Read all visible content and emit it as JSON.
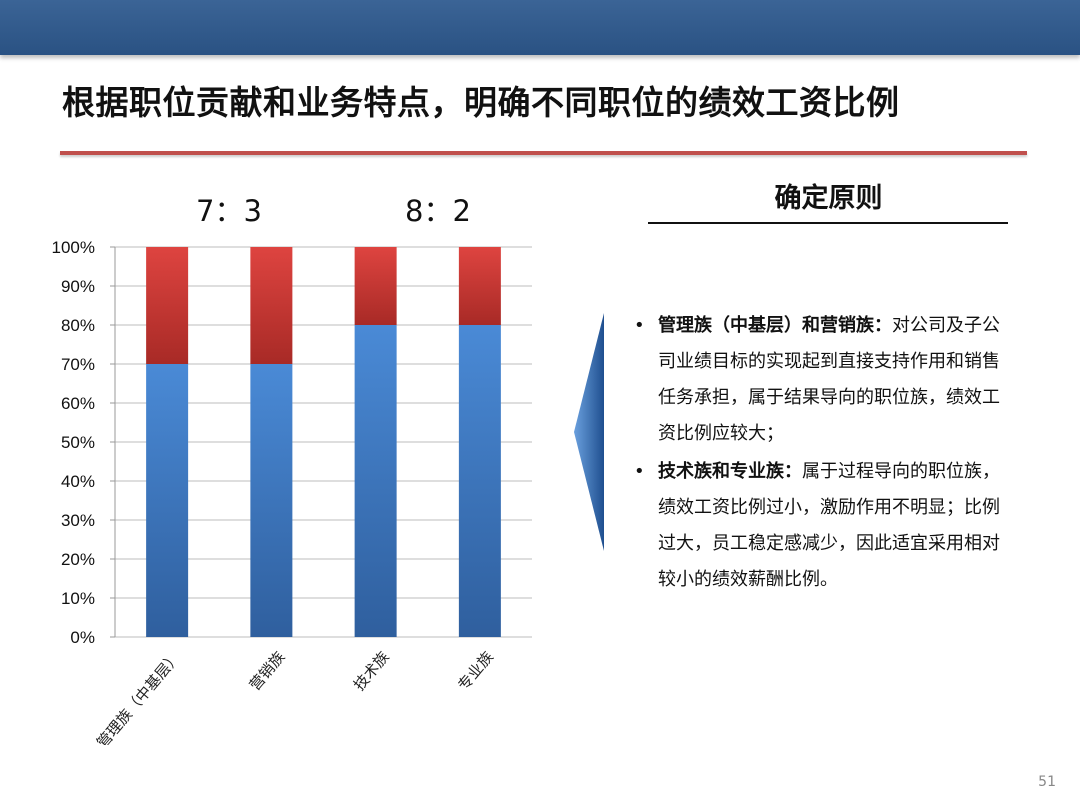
{
  "title": "根据职位贡献和业务特点，明确不同职位的绩效工资比例",
  "ratios": [
    "7：3",
    "8：2"
  ],
  "principle": {
    "heading": "确定原则",
    "items": [
      {
        "head": "管理族（中基层）和营销族：",
        "text": "对公司及子公司业绩目标的实现起到直接支持作用和销售任务承担，属于结果导向的职位族，绩效工资比例应较大；"
      },
      {
        "head": "技术族和专业族：",
        "text": "属于过程导向的职位族，绩效工资比例过小，激励作用不明显；比例过大，员工稳定感减少，因此适宜采用相对较小的绩效薪酬比例。"
      }
    ]
  },
  "page_number": "51",
  "colors": {
    "header_bar": "#2f5a8c",
    "title_rule": "#c0504d",
    "series_blue": "#3b7dc8",
    "series_red": "#cf3b36",
    "arrow": "#2a63a8"
  },
  "chart_data": {
    "type": "bar",
    "stacked": true,
    "percent": true,
    "categories": [
      "管理族（中基层）",
      "营销族",
      "技术族",
      "专业族"
    ],
    "series": [
      {
        "values": [
          70,
          70,
          80,
          80
        ]
      },
      {
        "values": [
          30,
          30,
          20,
          20
        ]
      }
    ],
    "ylim": [
      0,
      100
    ],
    "yticks": [
      "0%",
      "10%",
      "20%",
      "30%",
      "40%",
      "50%",
      "60%",
      "70%",
      "80%",
      "90%",
      "100%"
    ],
    "grid": true,
    "legend": "none",
    "xlabel": "",
    "ylabel": ""
  }
}
